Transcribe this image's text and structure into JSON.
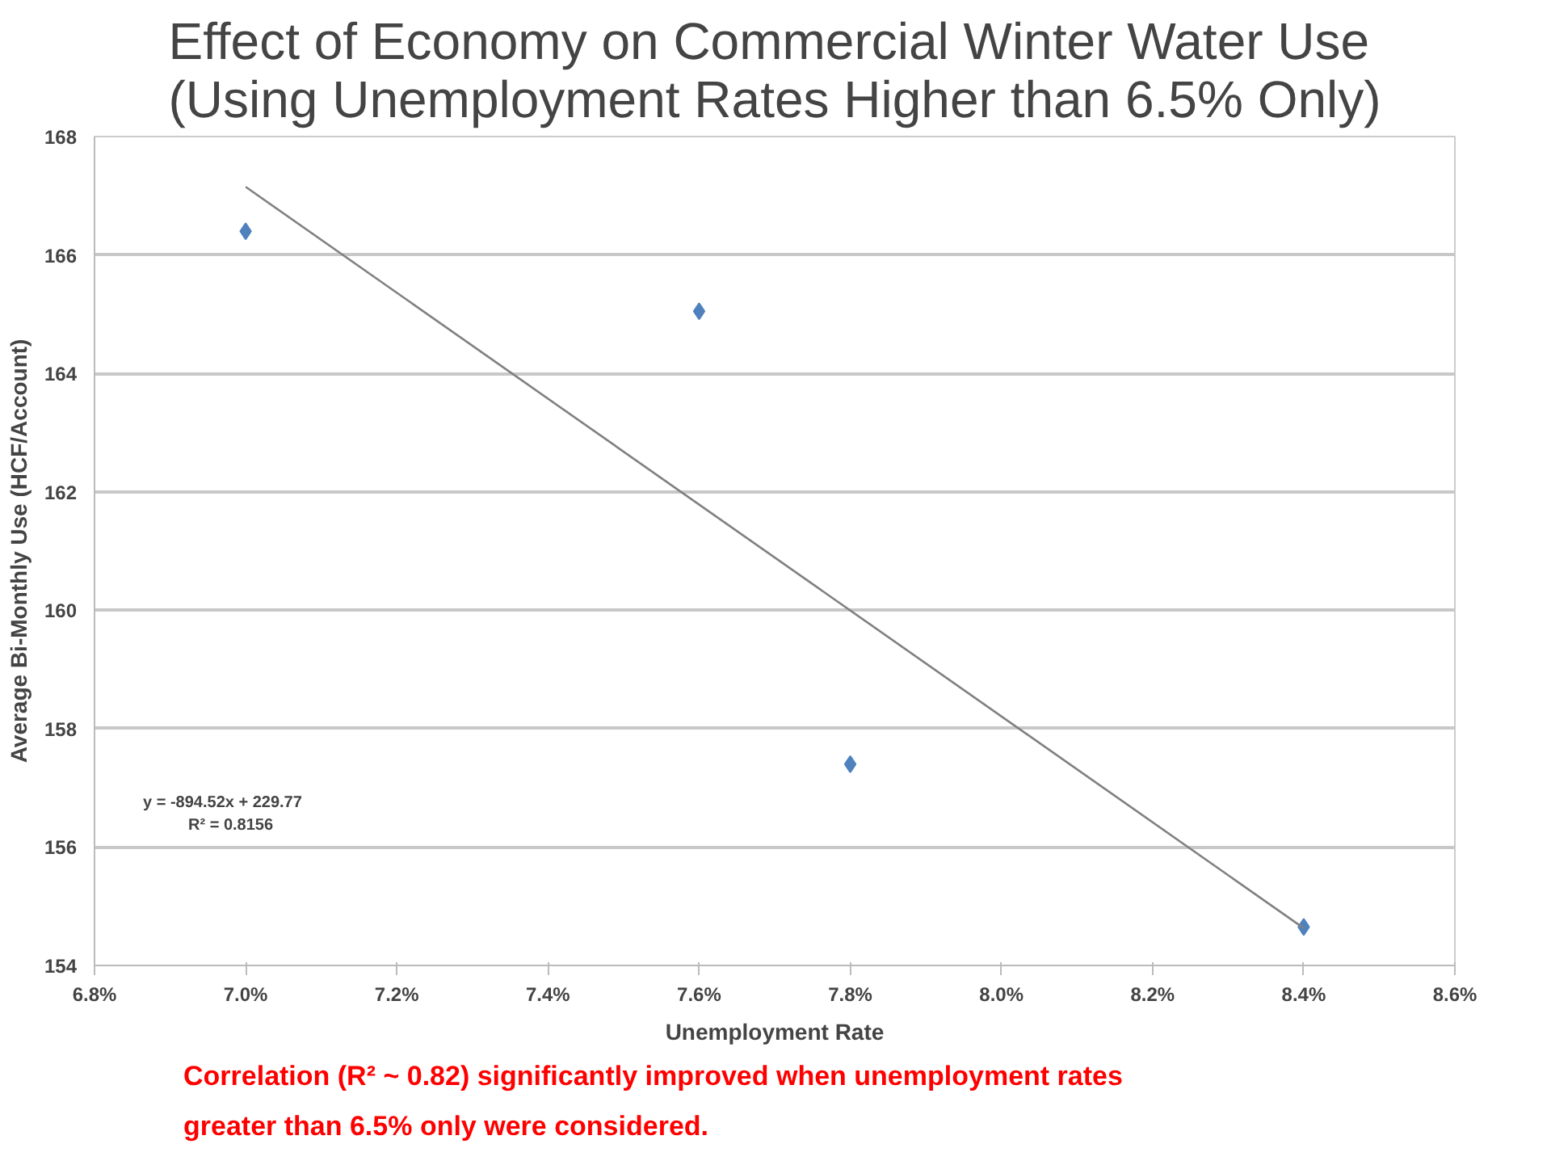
{
  "chart_data": {
    "type": "scatter",
    "title": "Effect of Economy on Commercial Winter Water Use\n(Using Unemployment Rates Higher than 6.5% Only)",
    "xlabel": "Unemployment Rate",
    "ylabel": "Average Bi-Monthly Use (HCF/Account)",
    "x": [
      7.0,
      7.6,
      7.8,
      8.4
    ],
    "series": [
      {
        "color": "#4f81bd",
        "marker": "diamond",
        "values": [
          166.4,
          165.05,
          157.4,
          154.65
        ]
      },
      {
        "type": "line",
        "color": "#808080",
        "x": [
          7.0,
          8.4
        ],
        "values": [
          167.15,
          154.63
        ]
      }
    ],
    "xlim": [
      6.8,
      8.6
    ],
    "xticks": [
      {
        "value": 6.8,
        "label": "6.8%"
      },
      {
        "value": 7.0,
        "label": "7.0%"
      },
      {
        "value": 7.2,
        "label": "7.2%"
      },
      {
        "value": 7.4,
        "label": "7.4%"
      },
      {
        "value": 7.6,
        "label": "7.6%"
      },
      {
        "value": 7.8,
        "label": "7.8%"
      },
      {
        "value": 8.0,
        "label": "8.0%"
      },
      {
        "value": 8.2,
        "label": "8.2%"
      },
      {
        "value": 8.4,
        "label": "8.4%"
      },
      {
        "value": 8.6,
        "label": "8.6%"
      }
    ],
    "ylim": [
      154,
      168
    ],
    "yticks": [
      154,
      156,
      158,
      160,
      162,
      164,
      166,
      168
    ],
    "grid": "y",
    "annotations": [
      "y = -894.52x + 229.77\nR² = 0.8156",
      "Correlation (R² ~ 0.82) significantly improved when unemployment rates\ngreater than 6.5% only were considered."
    ]
  }
}
